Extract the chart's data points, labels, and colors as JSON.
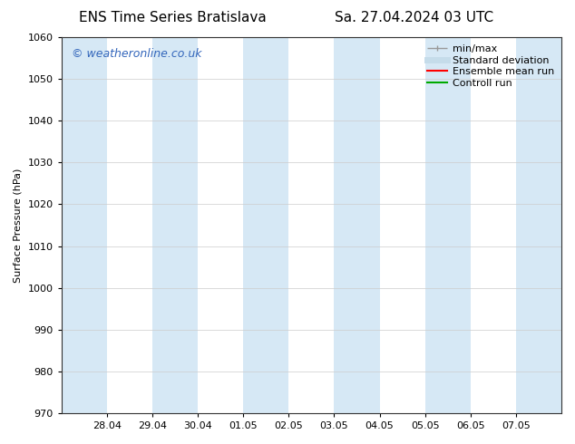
{
  "title_left": "ENS Time Series Bratislava",
  "title_right": "Sa. 27.04.2024 03 UTC",
  "ylabel": "Surface Pressure (hPa)",
  "ylim": [
    970,
    1060
  ],
  "yticks": [
    970,
    980,
    990,
    1000,
    1010,
    1020,
    1030,
    1040,
    1050,
    1060
  ],
  "x_tick_labels": [
    "28.04",
    "29.04",
    "30.04",
    "01.05",
    "02.05",
    "03.05",
    "04.05",
    "05.05",
    "06.05",
    "07.05"
  ],
  "x_tick_positions": [
    1,
    2,
    3,
    4,
    5,
    6,
    7,
    8,
    9,
    10
  ],
  "xlim": [
    0,
    11
  ],
  "shaded_regions": [
    {
      "x_start": 0.0,
      "x_end": 1.0
    },
    {
      "x_start": 2.0,
      "x_end": 3.0
    },
    {
      "x_start": 4.0,
      "x_end": 5.0
    },
    {
      "x_start": 6.0,
      "x_end": 7.0
    },
    {
      "x_start": 8.0,
      "x_end": 9.0
    },
    {
      "x_start": 10.0,
      "x_end": 11.0
    }
  ],
  "band_color": "#d6e8f5",
  "watermark_text": "© weatheronline.co.uk",
  "watermark_color": "#3366bb",
  "watermark_fontsize": 9,
  "bg_color": "#ffffff",
  "legend_items": [
    {
      "label": "min/max",
      "color": "#999999",
      "lw": 1
    },
    {
      "label": "Standard deviation",
      "color": "#c5dcea",
      "lw": 5
    },
    {
      "label": "Ensemble mean run",
      "color": "#ff0000",
      "lw": 1.5
    },
    {
      "label": "Controll run",
      "color": "#00aa00",
      "lw": 1.5
    }
  ],
  "title_fontsize": 11,
  "tick_fontsize": 8,
  "ylabel_fontsize": 8,
  "legend_fontsize": 8
}
